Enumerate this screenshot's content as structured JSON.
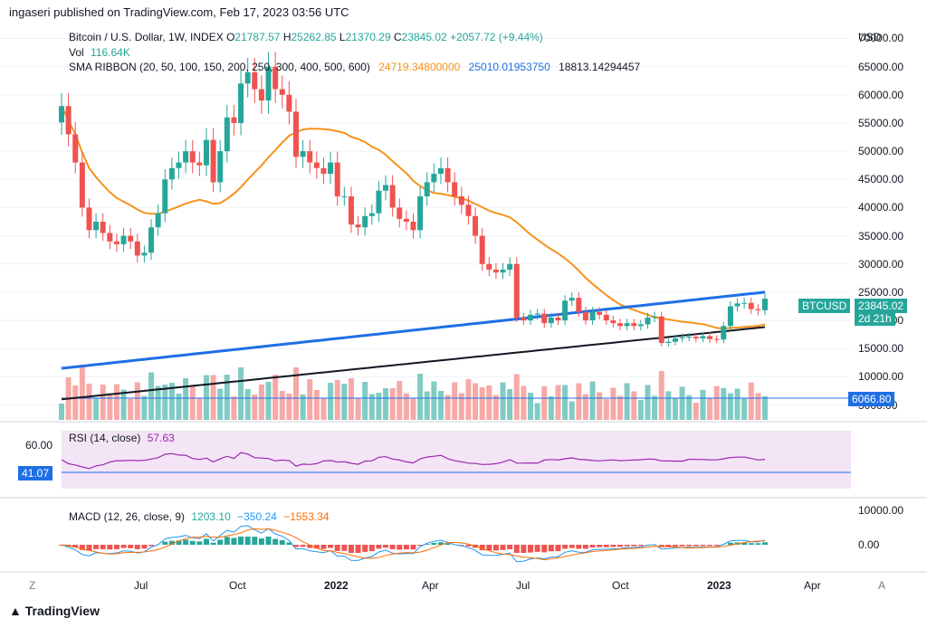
{
  "header": {
    "publisher": "ingaseri published on TradingView.com, Feb 17, 2023 03:56 UTC"
  },
  "price_pane": {
    "currency": "USD",
    "symbol_line": "Bitcoin / U.S. Dollar, 1W, INDEX",
    "ohlc": {
      "o_label": "O",
      "o": "21787.57",
      "h_label": "H",
      "h": "25262.85",
      "l_label": "L",
      "l": "21370.29",
      "c_label": "C",
      "c": "23845.02",
      "change": "+2057.72 (+9.44%)"
    },
    "vol_label": "Vol",
    "vol_value": "116.64K",
    "sma_label": "SMA RIBBON (20, 50, 100, 150, 200, 250, 300, 400, 500, 600)",
    "sma_values": [
      "24719.34800000",
      "25010.01953750",
      "18813.14294457"
    ],
    "price_ticks": [
      "70000.00",
      "65000.00",
      "60000.00",
      "55000.00",
      "50000.00",
      "45000.00",
      "40000.00",
      "35000.00",
      "30000.00",
      "25000.00",
      "20000.00",
      "15000.00",
      "10000.00",
      "5000.00"
    ],
    "btc_badge": {
      "symbol": "BTCUSD",
      "price": "23845.02",
      "countdown": "2d 21h"
    },
    "vol_badge": "6066.80"
  },
  "rsi_pane": {
    "label": "RSI (14, close)",
    "value": "57.63",
    "level_label": "60.00",
    "current_badge": "41.07"
  },
  "macd_pane": {
    "label": "MACD (12, 26, close, 9)",
    "v1": "1203.10",
    "v2": "−350.24",
    "v3": "−1553.34",
    "ticks": [
      "10000.00",
      "0.00"
    ]
  },
  "time_axis": {
    "labels": [
      "Jul",
      "Oct",
      "2022",
      "Apr",
      "Jul",
      "Oct",
      "2023",
      "Apr"
    ],
    "left_button": "Z",
    "right_button": "A"
  },
  "footer": {
    "brand": "TradingView"
  },
  "colors": {
    "up": "#26a69a",
    "down": "#ef5350",
    "sma_orange": "#f7931a",
    "sma_blue": "#1f6fe5",
    "sma_black": "#131722",
    "rsi": "#9c27b0",
    "macd": "#2196f3",
    "signal": "#ff6d00"
  },
  "chart_data": {
    "type": "candlestick",
    "title": "Bitcoin / U.S. Dollar, 1W, INDEX",
    "ylabel": "USD",
    "ylim": [
      3000,
      72000
    ],
    "series": [
      {
        "name": "Bitcoin / U.S. Dollar",
        "close_last": 23845.02
      },
      {
        "name": "SMA RIBBON",
        "values_last": [
          24719.348,
          25010.0195375,
          18813.14294457
        ]
      }
    ],
    "approx_close_path": [
      58000,
      53000,
      48000,
      40000,
      36000,
      37500,
      35500,
      34000,
      33500,
      35000,
      34000,
      31500,
      32000,
      36500,
      39000,
      45000,
      47000,
      48000,
      50000,
      48000,
      47500,
      52000,
      44500,
      50000,
      56000,
      55000,
      62000,
      64000,
      61000,
      59000,
      65000,
      61000,
      60000,
      57000,
      49000,
      50000,
      48000,
      47000,
      46000,
      48000,
      42000,
      42000,
      37000,
      36500,
      38500,
      39000,
      43000,
      44000,
      40000,
      38000,
      37500,
      36000,
      42000,
      44500,
      46000,
      47000,
      44500,
      42000,
      40500,
      38500,
      35000,
      30000,
      29000,
      28500,
      29000,
      30000,
      20500,
      20000,
      21000,
      21200,
      19500,
      20500,
      20000,
      23500,
      24000,
      21500,
      20000,
      21500,
      21000,
      20000,
      19500,
      19000,
      19500,
      19000,
      19300,
      20500,
      20700,
      16000,
      16200,
      16800,
      17000,
      17100,
      16800,
      17200,
      16700,
      16600,
      19000,
      22500,
      23000,
      23100,
      22000,
      21800,
      23845
    ]
  }
}
